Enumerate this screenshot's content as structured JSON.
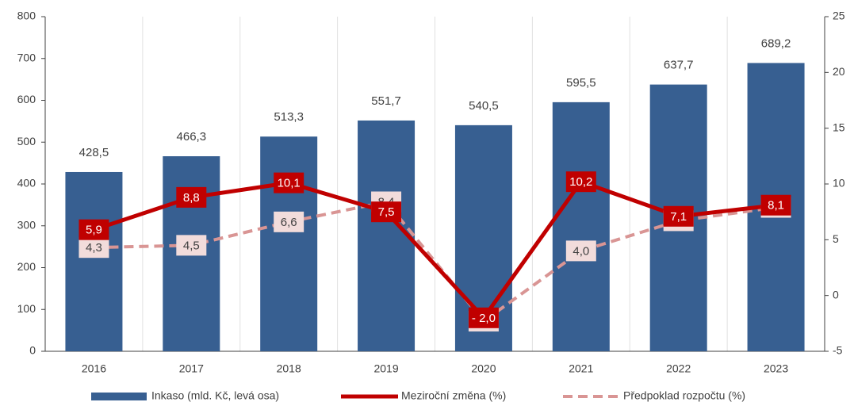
{
  "chart_data": {
    "type": "bar",
    "categories": [
      "2016",
      "2017",
      "2018",
      "2019",
      "2020",
      "2021",
      "2022",
      "2023"
    ],
    "series": [
      {
        "name": "Inkaso (mld. Kč, levá osa)",
        "type": "bar",
        "axis": "y",
        "color": "#375F91",
        "values": [
          428.5,
          466.3,
          513.3,
          551.7,
          540.5,
          595.5,
          637.7,
          689.2
        ],
        "value_labels": [
          "428,5",
          "466,3",
          "513,3",
          "551,7",
          "540,5",
          "595,5",
          "637,7",
          "689,2"
        ]
      },
      {
        "name": "Meziroční změna (%)",
        "type": "line",
        "axis": "y2",
        "color": "#C00000",
        "values": [
          5.9,
          8.8,
          10.1,
          7.5,
          -2.0,
          10.2,
          7.1,
          8.1
        ],
        "value_labels": [
          "5,9",
          "8,8",
          "10,1",
          "7,5",
          "- 2,0",
          "10,2",
          "7,1",
          "8,1"
        ]
      },
      {
        "name": "Předpoklad rozpočtu (%)",
        "type": "dashed",
        "axis": "y2",
        "color": "#D99594",
        "values": [
          4.3,
          4.5,
          6.6,
          8.4,
          -2.3,
          4.0,
          6.7,
          7.9
        ],
        "value_labels": [
          "4,3",
          "4,5",
          "6,6",
          "8,4",
          "-2,3",
          "4,0",
          "6,7",
          "7,9"
        ]
      }
    ],
    "ylim": [
      0,
      800
    ],
    "yticks": [
      0,
      100,
      200,
      300,
      400,
      500,
      600,
      700,
      800
    ],
    "y2lim": [
      -5,
      25
    ],
    "y2ticks": [
      -5,
      0,
      5,
      10,
      15,
      20,
      25
    ],
    "legend": "bottom"
  }
}
